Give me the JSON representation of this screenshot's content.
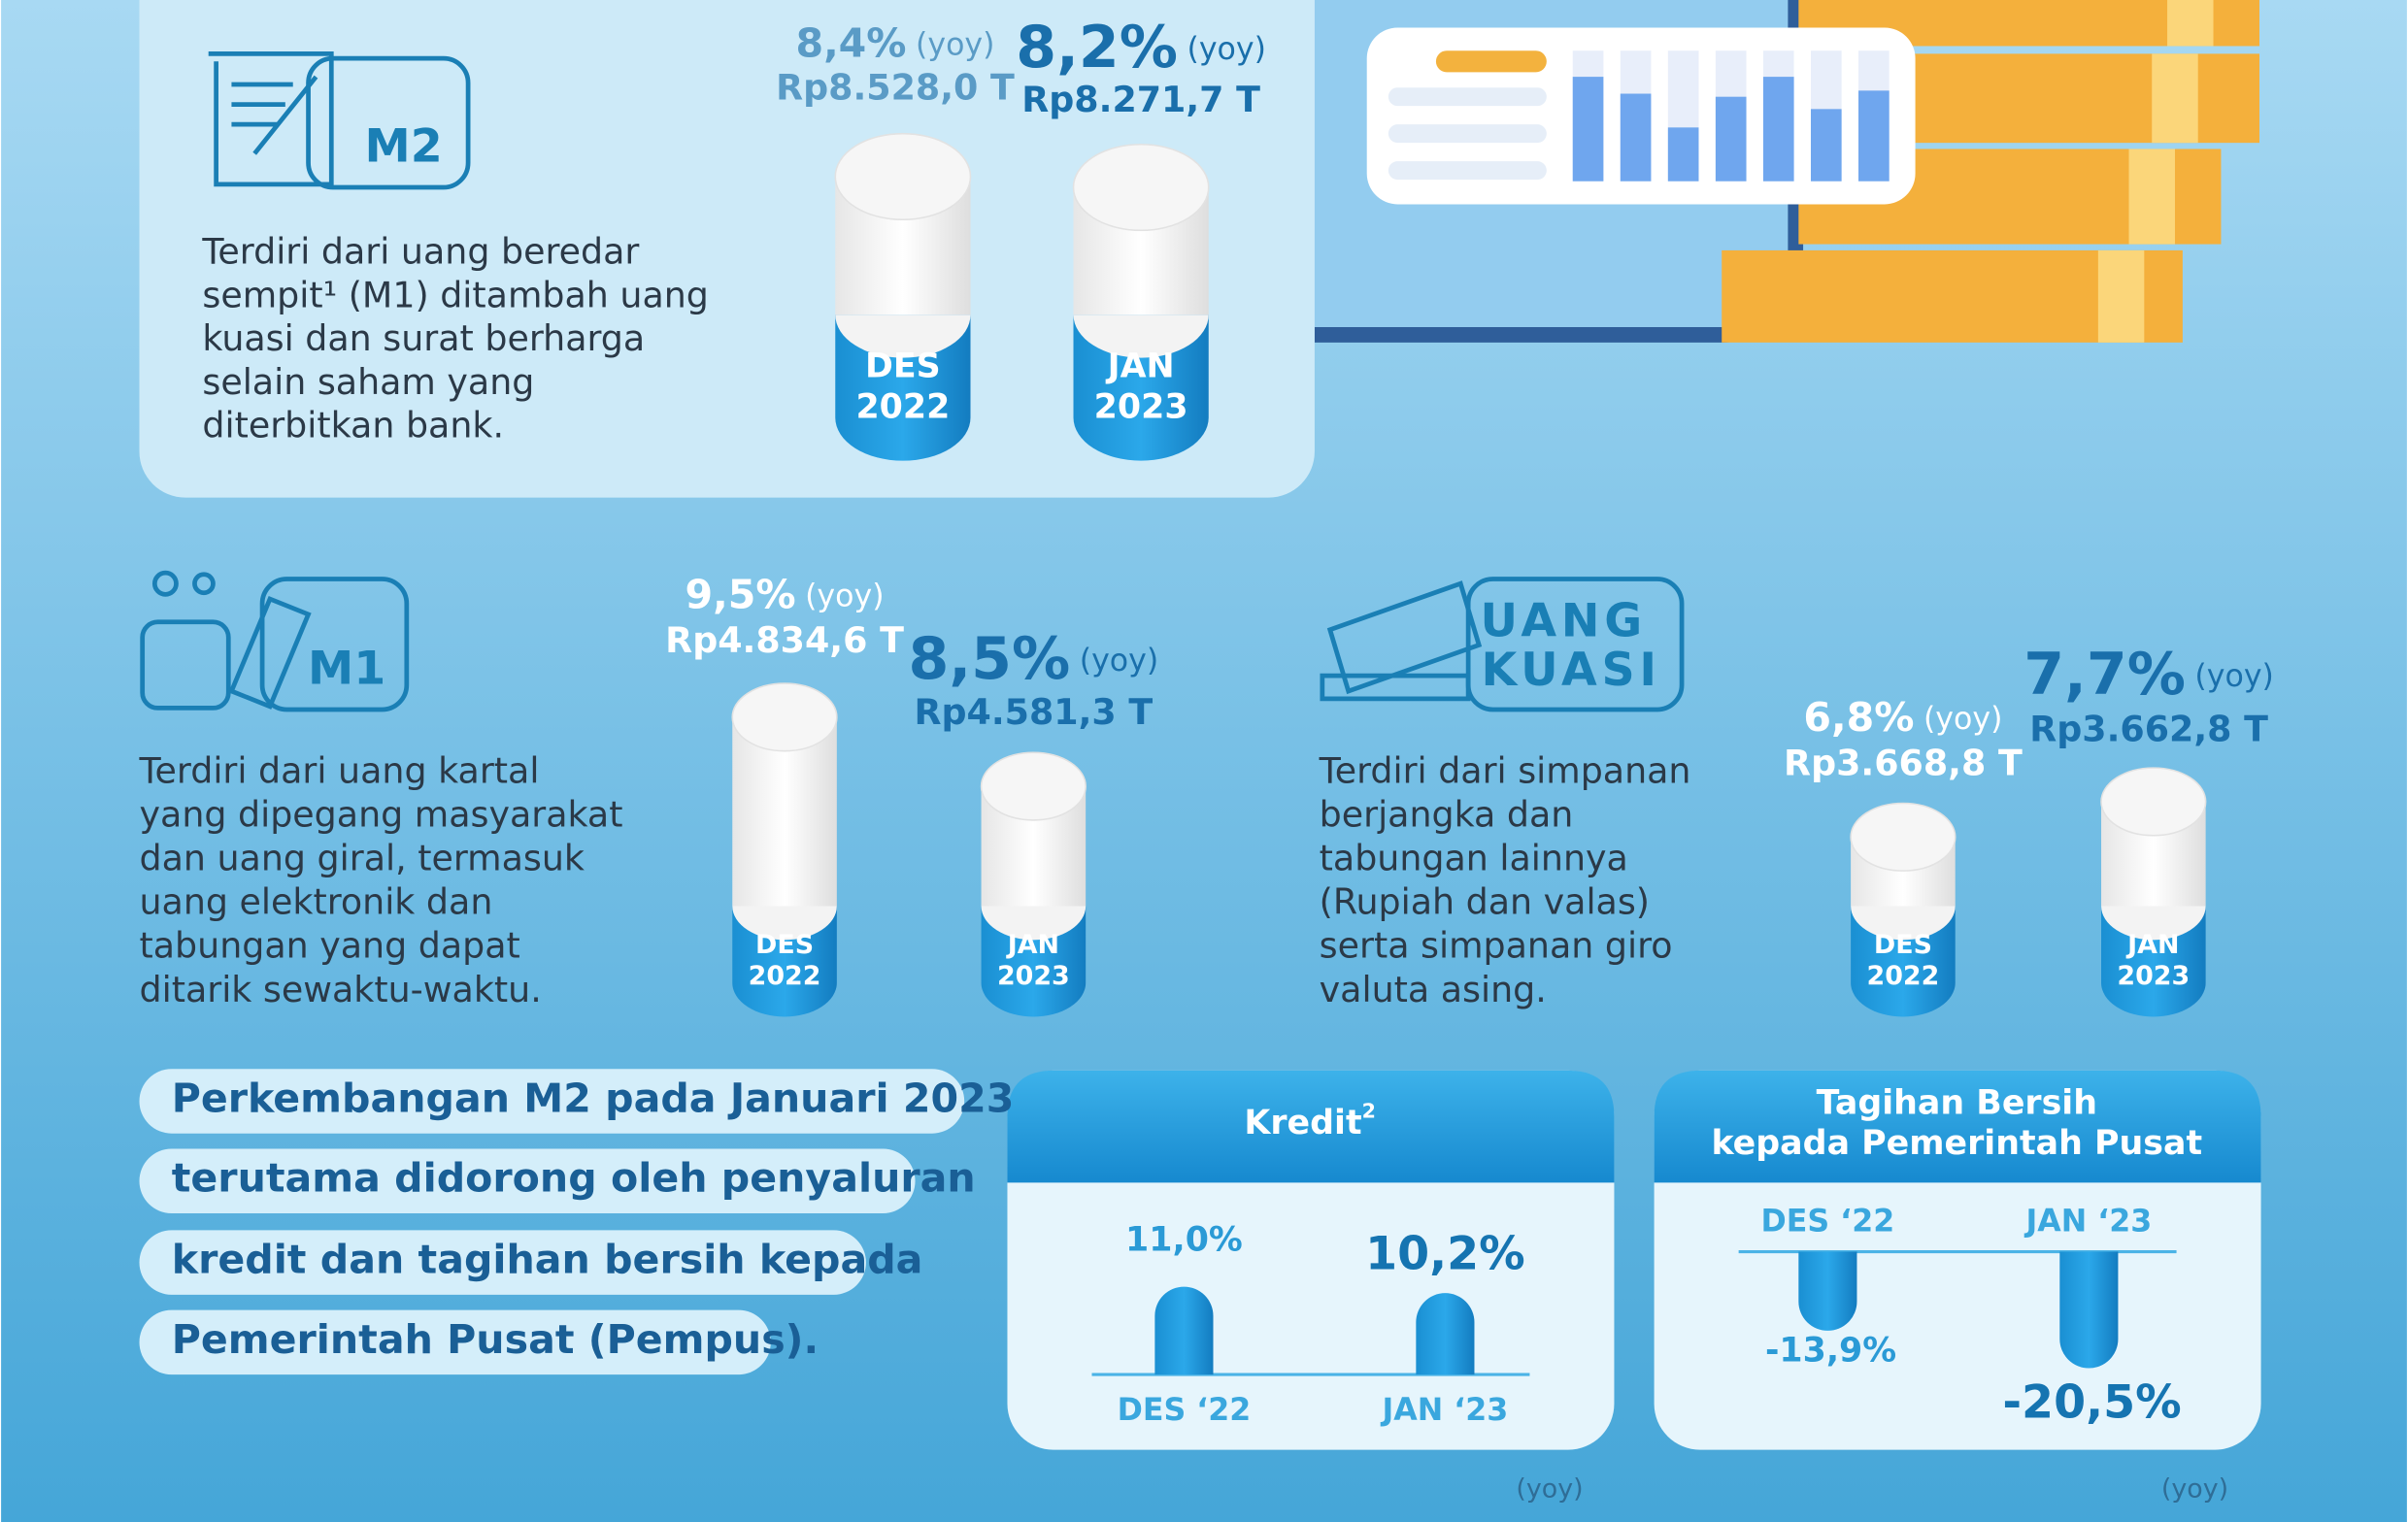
{
  "m2": {
    "label": "M2",
    "description": [
      "Terdiri dari uang beredar",
      "sempit¹ (M1) ditambah uang",
      "kuasi dan surat berharga",
      "selain saham yang",
      "diterbitkan bank."
    ],
    "bars": [
      {
        "growth": "8,4%",
        "unit": "(yoy)",
        "amount": "Rp8.528,0 T",
        "period": [
          "DES",
          "2022"
        ]
      },
      {
        "growth": "8,2%",
        "unit": "(yoy)",
        "amount": "Rp8.271,7 T",
        "period": [
          "JAN",
          "2023"
        ]
      }
    ]
  },
  "m1": {
    "label": "M1",
    "description": [
      "Terdiri dari uang kartal",
      "yang dipegang masyarakat",
      "dan uang giral, termasuk",
      "uang elektronik dan",
      "tabungan yang dapat",
      "ditarik sewaktu-waktu."
    ],
    "bars": [
      {
        "growth": "9,5%",
        "unit": "(yoy)",
        "amount": "Rp4.834,6 T",
        "period": [
          "DES",
          "2022"
        ]
      },
      {
        "growth": "8,5%",
        "unit": "(yoy)",
        "amount": "Rp4.581,3 T",
        "period": [
          "JAN",
          "2023"
        ]
      }
    ]
  },
  "uang_kuasi": {
    "label": [
      "UANG",
      "KUASI"
    ],
    "description": [
      "Terdiri dari simpanan",
      "berjangka dan",
      "tabungan lainnya",
      "(Rupiah dan valas)",
      "serta simpanan giro",
      "valuta asing."
    ],
    "bars": [
      {
        "growth": "6,8%",
        "unit": "(yoy)",
        "amount": "Rp3.668,8 T",
        "period": [
          "DES",
          "2022"
        ]
      },
      {
        "growth": "7,7%",
        "unit": "(yoy)",
        "amount": "Rp3.662,8 T",
        "period": [
          "JAN",
          "2023"
        ]
      }
    ]
  },
  "summary": [
    "Perkembangan M2 pada Januari 2023",
    "terutama didorong oleh penyaluran",
    "kredit dan tagihan bersih kepada",
    "Pemerintah Pusat (Pempus)."
  ],
  "kredit": {
    "title": "Kredit",
    "title_note": "2",
    "categories": [
      "DES ‘22",
      "JAN ‘23"
    ],
    "values": [
      11.0,
      10.2
    ],
    "value_labels": [
      "11,0%",
      "10,2%"
    ],
    "note": "(yoy)"
  },
  "tagihan": {
    "title": [
      "Tagihan Bersih",
      "kepada Pemerintah Pusat"
    ],
    "categories": [
      "DES ‘22",
      "JAN ‘23"
    ],
    "values": [
      -13.9,
      -20.5
    ],
    "value_labels": [
      "-13,9%",
      "-20,5%"
    ],
    "note": "(yoy)"
  }
}
